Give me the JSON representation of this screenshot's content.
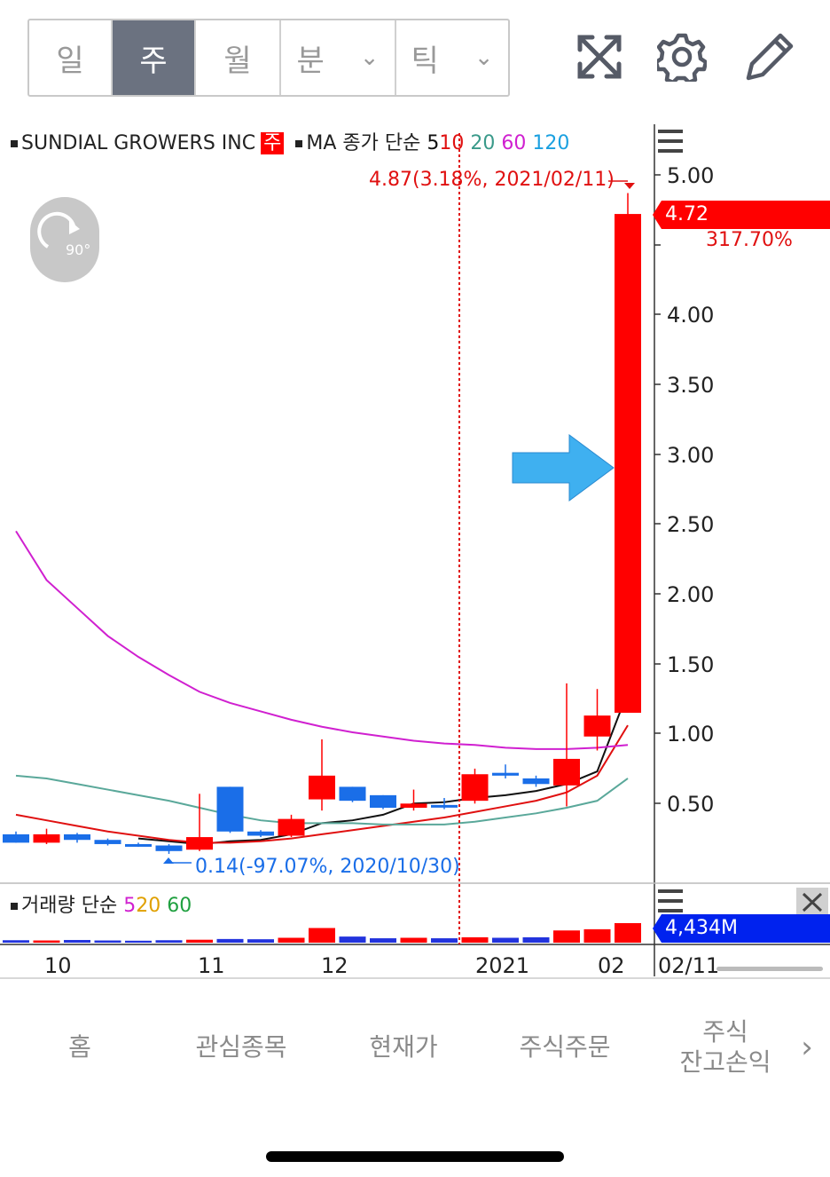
{
  "toolbar": {
    "periods": [
      "일",
      "주",
      "월",
      "분",
      "틱"
    ],
    "active_period": "주",
    "icons": [
      "expand-icon",
      "gear-icon",
      "pencil-icon"
    ]
  },
  "chart_legend": {
    "symbol": "SUNDIAL GROWERS INC",
    "period_tag": "주",
    "ma_label": "MA 종가 단순",
    "ma_periods": [
      "5",
      "10",
      "20",
      "60",
      "120"
    ],
    "ma_colors": [
      "#111111",
      "#e01010",
      "#3a9a8a",
      "#d020d0",
      "#1aa0e0"
    ],
    "volume_label": "거래량 단순",
    "vol_ma_periods": [
      "5",
      "20",
      "60"
    ],
    "vol_ma_colors": [
      "#d020d0",
      "#e0a000",
      "#20a040"
    ]
  },
  "annotations": {
    "high": "4.87(3.18%, 2021/02/11)",
    "low": "0.14(-97.07%, 2020/10/30)",
    "current_price": "4.72",
    "current_change": "317.70%",
    "current_volume": "4,434M",
    "rotate_badge": "90°",
    "cursor_date": "02/11"
  },
  "colors": {
    "up": "#ff0000",
    "down": "#1a6ee8",
    "arrow": "#3fb0f0"
  },
  "chart_data": {
    "type": "candlestick",
    "title": "SUNDIAL GROWERS INC",
    "y_ticks": [
      "5.00",
      "4.00",
      "3.50",
      "3.00",
      "2.50",
      "2.00",
      "1.50",
      "1.00",
      "0.50"
    ],
    "ylim": [
      0.0,
      5.0
    ],
    "x_ticks": [
      "10",
      "11",
      "12",
      "2021",
      "02"
    ],
    "candles": [
      {
        "open": 0.28,
        "high": 0.3,
        "low": 0.22,
        "close": 0.22
      },
      {
        "open": 0.22,
        "high": 0.32,
        "low": 0.21,
        "close": 0.28
      },
      {
        "open": 0.28,
        "high": 0.29,
        "low": 0.22,
        "close": 0.24
      },
      {
        "open": 0.24,
        "high": 0.25,
        "low": 0.2,
        "close": 0.21
      },
      {
        "open": 0.21,
        "high": 0.22,
        "low": 0.19,
        "close": 0.2
      },
      {
        "open": 0.2,
        "high": 0.21,
        "low": 0.14,
        "close": 0.16
      },
      {
        "open": 0.17,
        "high": 0.57,
        "low": 0.16,
        "close": 0.26
      },
      {
        "open": 0.62,
        "high": 0.62,
        "low": 0.29,
        "close": 0.3
      },
      {
        "open": 0.3,
        "high": 0.31,
        "low": 0.26,
        "close": 0.27
      },
      {
        "open": 0.27,
        "high": 0.42,
        "low": 0.26,
        "close": 0.39
      },
      {
        "open": 0.53,
        "high": 0.96,
        "low": 0.45,
        "close": 0.7
      },
      {
        "open": 0.62,
        "high": 0.62,
        "low": 0.51,
        "close": 0.52
      },
      {
        "open": 0.56,
        "high": 0.56,
        "low": 0.46,
        "close": 0.47
      },
      {
        "open": 0.47,
        "high": 0.6,
        "low": 0.45,
        "close": 0.5
      },
      {
        "open": 0.49,
        "high": 0.54,
        "low": 0.46,
        "close": 0.48
      },
      {
        "open": 0.52,
        "high": 0.75,
        "low": 0.5,
        "close": 0.71
      },
      {
        "open": 0.72,
        "high": 0.78,
        "low": 0.68,
        "close": 0.7
      },
      {
        "open": 0.68,
        "high": 0.7,
        "low": 0.62,
        "close": 0.64
      },
      {
        "open": 0.63,
        "high": 1.36,
        "low": 0.48,
        "close": 0.82
      },
      {
        "open": 0.98,
        "high": 1.32,
        "low": 0.88,
        "close": 1.13
      },
      {
        "open": 1.15,
        "high": 4.87,
        "low": 1.15,
        "close": 4.72
      }
    ],
    "series": [
      {
        "name": "5",
        "values": [
          null,
          null,
          null,
          null,
          0.25,
          0.23,
          0.21,
          0.23,
          0.24,
          0.28,
          0.36,
          0.38,
          0.42,
          0.5,
          0.51,
          0.54,
          0.56,
          0.59,
          0.64,
          0.73,
          1.3
        ]
      },
      {
        "name": "10",
        "values": [
          0.42,
          0.38,
          0.34,
          0.3,
          0.27,
          0.24,
          0.22,
          0.22,
          0.23,
          0.25,
          0.28,
          0.31,
          0.34,
          0.37,
          0.4,
          0.44,
          0.48,
          0.52,
          0.58,
          0.7,
          1.06
        ]
      },
      {
        "name": "20",
        "values": [
          0.7,
          0.68,
          0.64,
          0.6,
          0.56,
          0.52,
          0.47,
          0.42,
          0.38,
          0.36,
          0.36,
          0.36,
          0.35,
          0.35,
          0.35,
          0.37,
          0.4,
          0.43,
          0.47,
          0.52,
          0.68
        ]
      },
      {
        "name": "60",
        "values": [
          2.45,
          2.1,
          1.9,
          1.7,
          1.55,
          1.42,
          1.3,
          1.22,
          1.16,
          1.1,
          1.05,
          1.01,
          0.98,
          0.95,
          0.93,
          0.92,
          0.9,
          0.89,
          0.89,
          0.9,
          0.92
        ]
      }
    ],
    "volumes": [
      10,
      9,
      11,
      9,
      8,
      10,
      12,
      15,
      14,
      20,
      60,
      25,
      18,
      20,
      18,
      22,
      20,
      22,
      50,
      55,
      80
    ]
  },
  "nav": {
    "items": [
      "홈",
      "관심종목",
      "현재가",
      "주식주문",
      "주식\n잔고손익"
    ]
  }
}
